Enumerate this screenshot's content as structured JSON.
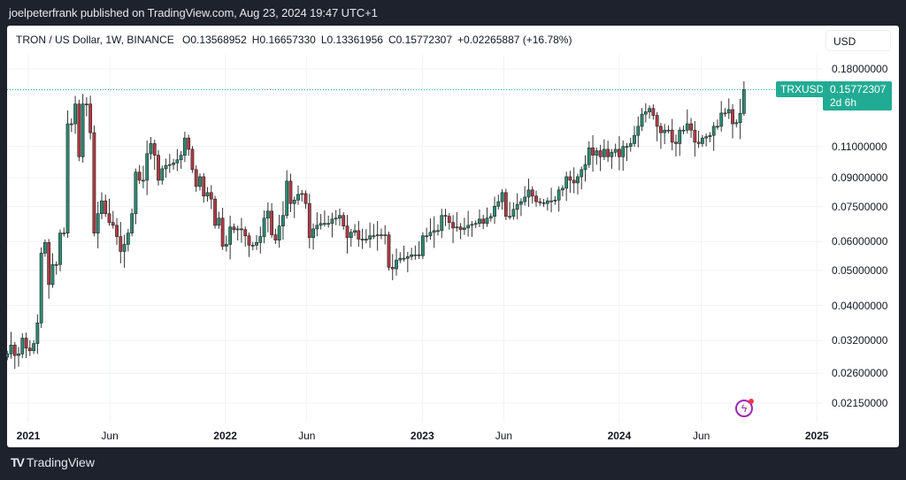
{
  "publish_line": "joelpeterfrank published on TradingView.com, Aug 23, 2024 19:47 UTC+1",
  "legend": {
    "symbol": "TRON / US Dollar, 1W, BINANCE",
    "open": "O0.13568952",
    "high": "H0.16657330",
    "low": "L0.13361956",
    "close": "C0.15772307",
    "change": "+0.02265887 (+16.78%)"
  },
  "currency_button": "USD",
  "price_tag": {
    "symbol": "TRXUSD",
    "price": "0.15772307",
    "countdown": "2d 6h"
  },
  "price_axis": [
    "0.18000000",
    "0.11000000",
    "0.09000000",
    "0.07500000",
    "0.06000000",
    "0.05000000",
    "0.04000000",
    "0.03200000",
    "0.02600000",
    "0.02150000"
  ],
  "time_axis": [
    "2021",
    "Jun",
    "2022",
    "Jun",
    "2023",
    "Jun",
    "2024",
    "Jun",
    "2025"
  ],
  "brand": "TradingView",
  "colors": {
    "up": "#2a8c72",
    "down": "#b23a44",
    "price_line": "#22ab94",
    "background": "#1e222d"
  },
  "icons": [
    "lightning-alert-icon",
    "tradingview-logo-icon"
  ],
  "chart_data": {
    "type": "candlestick",
    "title": "TRON / US Dollar, 1W, BINANCE",
    "interval": "1W",
    "y_scale": "log",
    "ylim": [
      0.0195,
      0.2
    ],
    "grid": true,
    "last_candle": {
      "open": 0.13568952,
      "high": 0.1665733,
      "low": 0.13361956,
      "close": 0.15772307
    },
    "weekly_closes": [
      0.0294,
      0.0311,
      0.0291,
      0.0294,
      0.0325,
      0.0305,
      0.03,
      0.0314,
      0.0358,
      0.0558,
      0.0597,
      0.0457,
      0.0519,
      0.0519,
      0.0634,
      0.0634,
      0.127,
      0.127,
      0.144,
      0.103,
      0.144,
      0.144,
      0.12,
      0.0634,
      0.0717,
      0.0778,
      0.0717,
      0.0678,
      0.0666,
      0.062,
      0.0564,
      0.059,
      0.0634,
      0.0717,
      0.0934,
      0.0887,
      0.0887,
      0.105,
      0.112,
      0.104,
      0.0887,
      0.0954,
      0.0975,
      0.098,
      0.099,
      0.101,
      0.104,
      0.116,
      0.108,
      0.0949,
      0.0853,
      0.0907,
      0.0802,
      0.082,
      0.0787,
      0.0666,
      0.0697,
      0.0583,
      0.059,
      0.0659,
      0.0648,
      0.0651,
      0.0648,
      0.0623,
      0.0587,
      0.0587,
      0.0597,
      0.062,
      0.0697,
      0.0729,
      0.0627,
      0.0606,
      0.0663,
      0.0709,
      0.0882,
      0.0765,
      0.0782,
      0.0811,
      0.0815,
      0.0765,
      0.0616,
      0.0651,
      0.0666,
      0.0674,
      0.0674,
      0.0674,
      0.0693,
      0.0697,
      0.0709,
      0.0663,
      0.0616,
      0.0637,
      0.0644,
      0.061,
      0.0606,
      0.061,
      0.0623,
      0.0623,
      0.0627,
      0.0627,
      0.0627,
      0.051,
      0.0505,
      0.0534,
      0.054,
      0.054,
      0.0546,
      0.0552,
      0.0552,
      0.0549,
      0.0623,
      0.0623,
      0.0637,
      0.0644,
      0.0644,
      0.0709,
      0.0705,
      0.0678,
      0.0655,
      0.0659,
      0.0648,
      0.0655,
      0.0666,
      0.067,
      0.0674,
      0.0693,
      0.0674,
      0.0697,
      0.0705,
      0.0752,
      0.0774,
      0.082,
      0.0705,
      0.0705,
      0.0737,
      0.0761,
      0.0774,
      0.0797,
      0.0834,
      0.0802,
      0.0774,
      0.0769,
      0.0765,
      0.0778,
      0.0778,
      0.0782,
      0.0834,
      0.0843,
      0.0907,
      0.0887,
      0.0872,
      0.0907,
      0.0949,
      0.098,
      0.109,
      0.104,
      0.107,
      0.103,
      0.108,
      0.103,
      0.106,
      0.108,
      0.103,
      0.11,
      0.11,
      0.112,
      0.118,
      0.125,
      0.135,
      0.137,
      0.14,
      0.134,
      0.125,
      0.12,
      0.122,
      0.122,
      0.113,
      0.112,
      0.122,
      0.122,
      0.127,
      0.122,
      0.113,
      0.112,
      0.116,
      0.117,
      0.118,
      0.125,
      0.125,
      0.136,
      0.136,
      0.139,
      0.127,
      0.128,
      0.1357,
      0.15772307
    ]
  }
}
